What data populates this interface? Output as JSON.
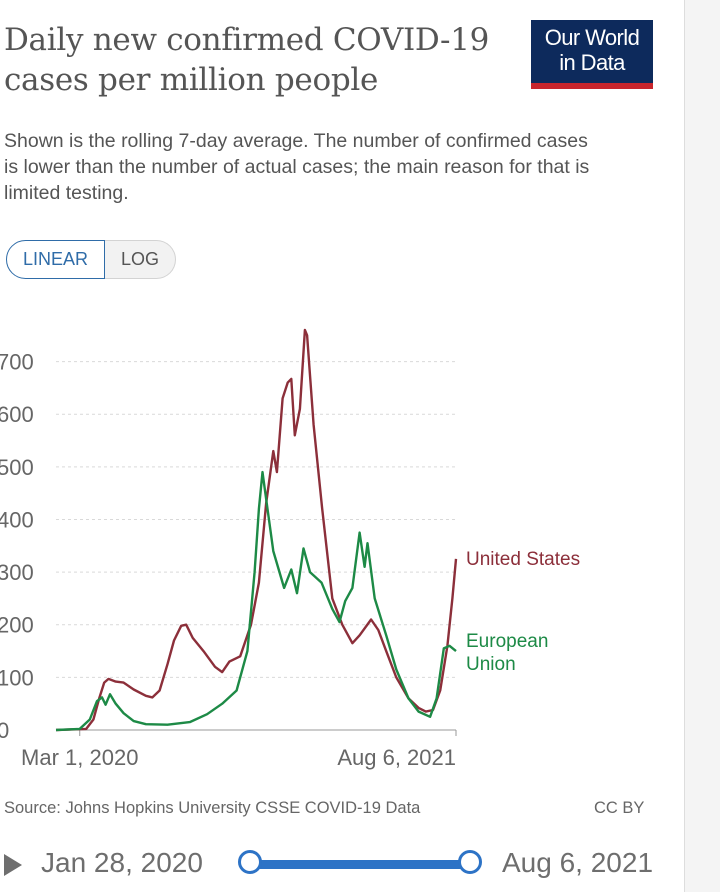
{
  "header": {
    "title": "Daily new confirmed COVID-19 cases per million people",
    "subtitle": "Shown is the rolling 7-day average. The number of confirmed cases is lower than the number of actual cases; the main reason for that is limited testing.",
    "logo_line1": "Our World",
    "logo_line2": "in Data"
  },
  "scale_toggle": {
    "linear": "LINEAR",
    "log": "LOG",
    "selected": "LINEAR"
  },
  "chart_data": {
    "type": "line",
    "y_ticks": [
      "0",
      "100",
      "200",
      "300",
      "400",
      "500",
      "600",
      "700"
    ],
    "ylim": [
      0,
      760
    ],
    "xlim": [
      "2020-01-28",
      "2021-08-06"
    ],
    "x_tick_labels": [
      "Mar 1, 2020",
      "Aug 6, 2021"
    ],
    "x_tick_dates": [
      "2020-03-01",
      "2021-08-06"
    ],
    "grid": "horizontal dashed",
    "legend": "inline labels at line ends",
    "series": [
      {
        "name": "United States",
        "color": "#8c2f3a",
        "points": [
          [
            "2020-01-28",
            0
          ],
          [
            "2020-03-10",
            2
          ],
          [
            "2020-03-20",
            20
          ],
          [
            "2020-03-28",
            60
          ],
          [
            "2020-04-04",
            90
          ],
          [
            "2020-04-10",
            97
          ],
          [
            "2020-04-20",
            92
          ],
          [
            "2020-05-01",
            90
          ],
          [
            "2020-05-15",
            77
          ],
          [
            "2020-06-01",
            65
          ],
          [
            "2020-06-10",
            62
          ],
          [
            "2020-06-20",
            75
          ],
          [
            "2020-07-01",
            125
          ],
          [
            "2020-07-10",
            170
          ],
          [
            "2020-07-20",
            198
          ],
          [
            "2020-07-27",
            200
          ],
          [
            "2020-08-05",
            175
          ],
          [
            "2020-08-20",
            150
          ],
          [
            "2020-09-05",
            120
          ],
          [
            "2020-09-15",
            110
          ],
          [
            "2020-09-25",
            130
          ],
          [
            "2020-10-10",
            140
          ],
          [
            "2020-10-25",
            200
          ],
          [
            "2020-11-05",
            280
          ],
          [
            "2020-11-15",
            430
          ],
          [
            "2020-11-25",
            530
          ],
          [
            "2020-11-30",
            490
          ],
          [
            "2020-12-08",
            630
          ],
          [
            "2020-12-15",
            660
          ],
          [
            "2020-12-20",
            667
          ],
          [
            "2020-12-25",
            560
          ],
          [
            "2021-01-01",
            610
          ],
          [
            "2021-01-08",
            760
          ],
          [
            "2021-01-11",
            750
          ],
          [
            "2021-01-20",
            580
          ],
          [
            "2021-02-01",
            420
          ],
          [
            "2021-02-15",
            250
          ],
          [
            "2021-03-01",
            200
          ],
          [
            "2021-03-15",
            165
          ],
          [
            "2021-03-25",
            180
          ],
          [
            "2021-04-10",
            210
          ],
          [
            "2021-04-20",
            190
          ],
          [
            "2021-05-01",
            150
          ],
          [
            "2021-05-15",
            100
          ],
          [
            "2021-06-01",
            60
          ],
          [
            "2021-06-15",
            42
          ],
          [
            "2021-06-25",
            35
          ],
          [
            "2021-07-05",
            38
          ],
          [
            "2021-07-15",
            75
          ],
          [
            "2021-07-25",
            160
          ],
          [
            "2021-08-01",
            250
          ],
          [
            "2021-08-06",
            325
          ]
        ]
      },
      {
        "name": "European Union",
        "color": "#1d8a46",
        "points": [
          [
            "2020-01-28",
            0
          ],
          [
            "2020-03-01",
            2
          ],
          [
            "2020-03-15",
            20
          ],
          [
            "2020-03-25",
            55
          ],
          [
            "2020-04-01",
            62
          ],
          [
            "2020-04-06",
            48
          ],
          [
            "2020-04-12",
            68
          ],
          [
            "2020-04-20",
            50
          ],
          [
            "2020-05-01",
            32
          ],
          [
            "2020-05-15",
            17
          ],
          [
            "2020-06-01",
            11
          ],
          [
            "2020-07-01",
            10
          ],
          [
            "2020-08-01",
            15
          ],
          [
            "2020-08-25",
            30
          ],
          [
            "2020-09-15",
            50
          ],
          [
            "2020-10-05",
            75
          ],
          [
            "2020-10-20",
            150
          ],
          [
            "2020-10-30",
            300
          ],
          [
            "2020-11-05",
            420
          ],
          [
            "2020-11-10",
            490
          ],
          [
            "2020-11-17",
            420
          ],
          [
            "2020-11-25",
            340
          ],
          [
            "2020-12-10",
            270
          ],
          [
            "2020-12-20",
            305
          ],
          [
            "2020-12-28",
            260
          ],
          [
            "2021-01-06",
            345
          ],
          [
            "2021-01-15",
            300
          ],
          [
            "2021-01-31",
            280
          ],
          [
            "2021-02-15",
            230
          ],
          [
            "2021-02-25",
            205
          ],
          [
            "2021-03-05",
            245
          ],
          [
            "2021-03-15",
            270
          ],
          [
            "2021-03-25",
            375
          ],
          [
            "2021-04-01",
            310
          ],
          [
            "2021-04-05",
            355
          ],
          [
            "2021-04-15",
            250
          ],
          [
            "2021-05-01",
            180
          ],
          [
            "2021-05-15",
            115
          ],
          [
            "2021-06-01",
            60
          ],
          [
            "2021-06-15",
            35
          ],
          [
            "2021-07-01",
            25
          ],
          [
            "2021-07-10",
            60
          ],
          [
            "2021-07-20",
            155
          ],
          [
            "2021-07-28",
            160
          ],
          [
            "2021-08-06",
            150
          ]
        ]
      }
    ]
  },
  "footer": {
    "source": "Source: Johns Hopkins University CSSE COVID-19 Data",
    "license": "CC BY"
  },
  "timeline": {
    "start_label": "Jan 28, 2020",
    "end_label": "Aug 6, 2021"
  }
}
